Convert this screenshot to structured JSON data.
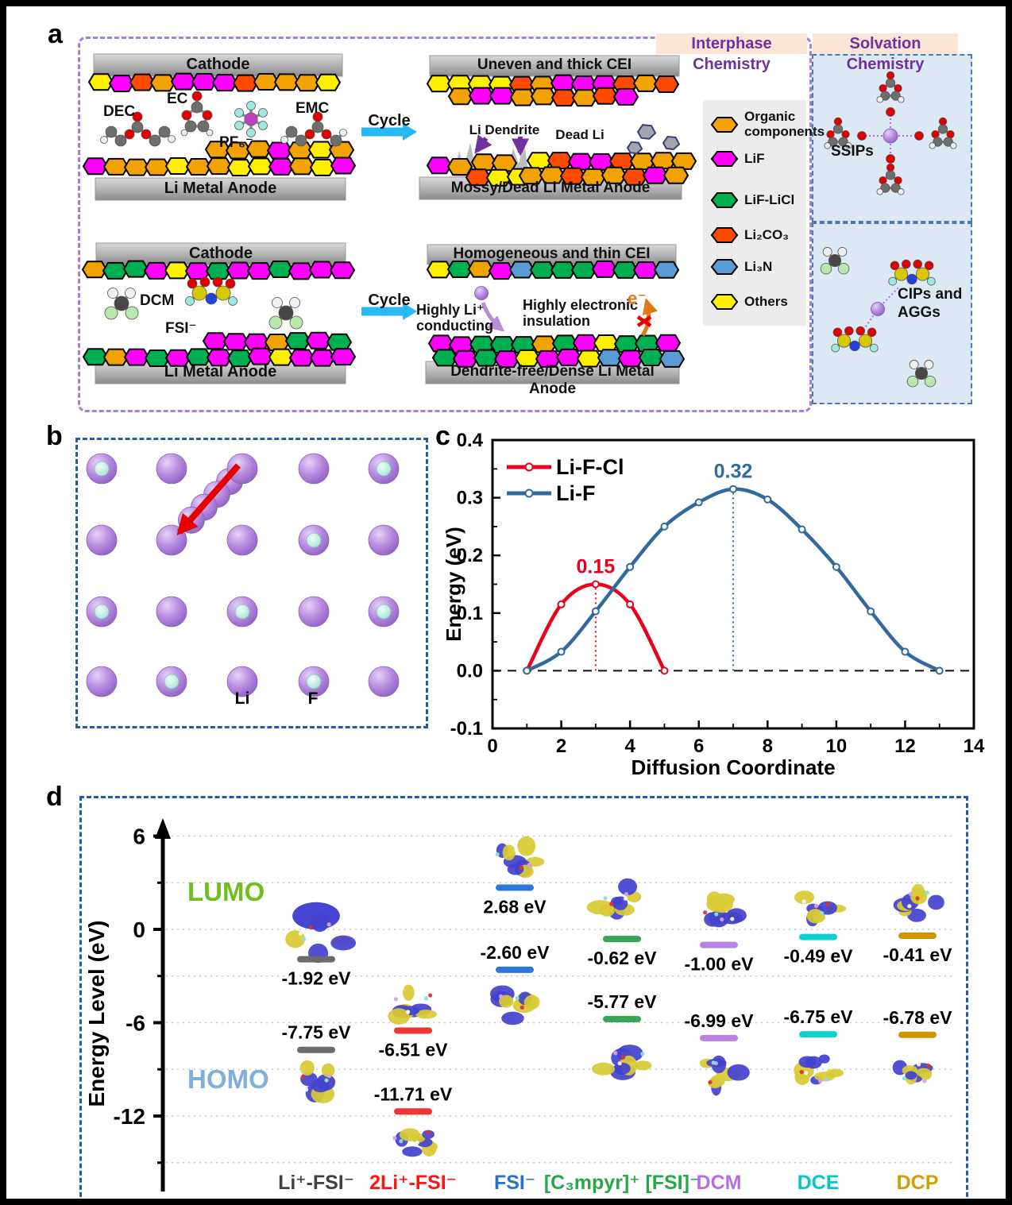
{
  "panel_a": {
    "label": "a",
    "headers": {
      "interphase": "Interphase Chemistry",
      "solvation": "Solvation Chemistry",
      "text_color": "#7030a0",
      "bg_color": "#fbe5d6"
    },
    "conventional": {
      "cathode": "Cathode",
      "anode": "Li Metal Anode",
      "dec": "DEC",
      "ec": "EC",
      "pf6": "PF₆⁻",
      "emc": "EMC",
      "cycle": "Cycle",
      "cei": "Uneven and thick CEI",
      "li_dendrite": "Li Dendrite",
      "dead_li": "Dead Li",
      "anode_after": "Mossy/Dead Li Metal Anode"
    },
    "novel": {
      "cathode": "Cathode",
      "anode": "Li Metal Anode",
      "dcm": "DCM",
      "fsi": "FSI⁻",
      "cycle": "Cycle",
      "cei": "Homogeneous and thin CEI",
      "li_conducting_line1": "Highly Li⁺",
      "li_conducting_line2": "conducting",
      "insulation_line1": "Highly electronic",
      "insulation_line2": "insulation",
      "electron": "e⁻",
      "anode_after": "Dendrite-free/Dense Li Metal Anode"
    },
    "legend": {
      "items": [
        {
          "label": "Organic components",
          "color": "#F2A202"
        },
        {
          "label": "LiF",
          "color": "#FF00FF"
        },
        {
          "label": "LiF-LiCl",
          "color": "#00B050"
        },
        {
          "label": "Li₂CO₃",
          "color": "#FF4B00"
        },
        {
          "label": "Li₃N",
          "color": "#5B9BD5"
        },
        {
          "label": "Others",
          "color": "#FFF000"
        }
      ]
    },
    "solvation": {
      "ssips": "SSIPs",
      "cips": "CIPs and AGGs"
    }
  },
  "panel_b": {
    "label": "b",
    "li_label": "Li",
    "f_label": "F",
    "grid": [
      [
        "F",
        "Li",
        "Li",
        "Li",
        "F"
      ],
      [
        "Li",
        "Li",
        "Li",
        "F",
        "Li"
      ],
      [
        "F",
        "Li",
        "F",
        "Li",
        "F"
      ],
      [
        "Li",
        "F",
        "Li",
        "F",
        "Li"
      ]
    ]
  },
  "panel_c": {
    "label": "c"
  },
  "panel_d": {
    "label": "d",
    "lumo": "LUMO",
    "homo": "HOMO",
    "ylabel": "Energy Level (eV)",
    "lumo_color": "#6fbe1e",
    "homo_color": "#7fafdc"
  },
  "chart_data": [
    {
      "id": "panel-c",
      "type": "line",
      "title": "",
      "xlabel": "Diffusion Coordinate",
      "ylabel": "Energy (eV)",
      "xlim": [
        0,
        14
      ],
      "ylim": [
        -0.1,
        0.4
      ],
      "xticks": [
        "0",
        "2",
        "4",
        "6",
        "8",
        "10",
        "12",
        "14"
      ],
      "yticks": [
        "-0.1",
        "0.0",
        "0.1",
        "0.2",
        "0.3",
        "0.4"
      ],
      "grid": false,
      "legend_position": "top-left",
      "zero_reference_line": true,
      "series": [
        {
          "name": "Li-F-Cl",
          "color": "#E8001C",
          "x": [
            1,
            2,
            3,
            4,
            5
          ],
          "y": [
            0.0,
            0.115,
            0.15,
            0.115,
            0.0
          ],
          "barrier_label": "0.15",
          "peak_x": 3,
          "peak_y": 0.15
        },
        {
          "name": "Li-F",
          "color": "#336A9E",
          "x": [
            1,
            2,
            3,
            4,
            5,
            6,
            7,
            8,
            9,
            10,
            11,
            12,
            13
          ],
          "y": [
            0.0,
            0.033,
            0.103,
            0.18,
            0.25,
            0.292,
            0.315,
            0.297,
            0.245,
            0.18,
            0.103,
            0.033,
            0.0
          ],
          "barrier_label": "0.32",
          "peak_x": 7,
          "peak_y": 0.315
        }
      ]
    },
    {
      "id": "panel-d",
      "type": "energy-levels",
      "ylabel": "Energy Level (eV)",
      "unit": "eV",
      "ylim": [
        -16.5,
        8
      ],
      "yticks_major": [
        "6",
        "0",
        "-6",
        "-12"
      ],
      "yticks_minor": [
        3,
        -3,
        -9,
        -15
      ],
      "lumo_label": "LUMO",
      "homo_label": "HOMO",
      "species": [
        {
          "name": "Li⁺-FSI⁻",
          "bar_color": "#6b6b6b",
          "label_color": "#404040",
          "lumo_eV": -1.92,
          "homo_eV": -7.75
        },
        {
          "name": "2Li⁺-FSI⁻",
          "bar_color": "#F03535",
          "label_color": "#FF1414",
          "lumo_eV": -6.51,
          "homo_eV": -11.71
        },
        {
          "name": "FSI⁻",
          "bar_color": "#2B79DE",
          "label_color": "#2472D2",
          "lumo_eV": 2.68,
          "homo_eV": -2.6
        },
        {
          "name": "[C₃mpyr]⁺ [FSI]⁻",
          "bar_color": "#35A65A",
          "label_color": "#28A74A",
          "lumo_eV": -0.62,
          "homo_eV": -5.77
        },
        {
          "name": "DCM",
          "bar_color": "#B584E6",
          "label_color": "#B46FE0",
          "lumo_eV": -1.0,
          "homo_eV": -6.99
        },
        {
          "name": "DCE",
          "bar_color": "#0FD0CD",
          "label_color": "#00C9C9",
          "lumo_eV": -0.49,
          "homo_eV": -6.75
        },
        {
          "name": "DCP",
          "bar_color": "#CF9400",
          "label_color": "#D29F00",
          "lumo_eV": -0.41,
          "homo_eV": -6.78
        }
      ]
    }
  ]
}
